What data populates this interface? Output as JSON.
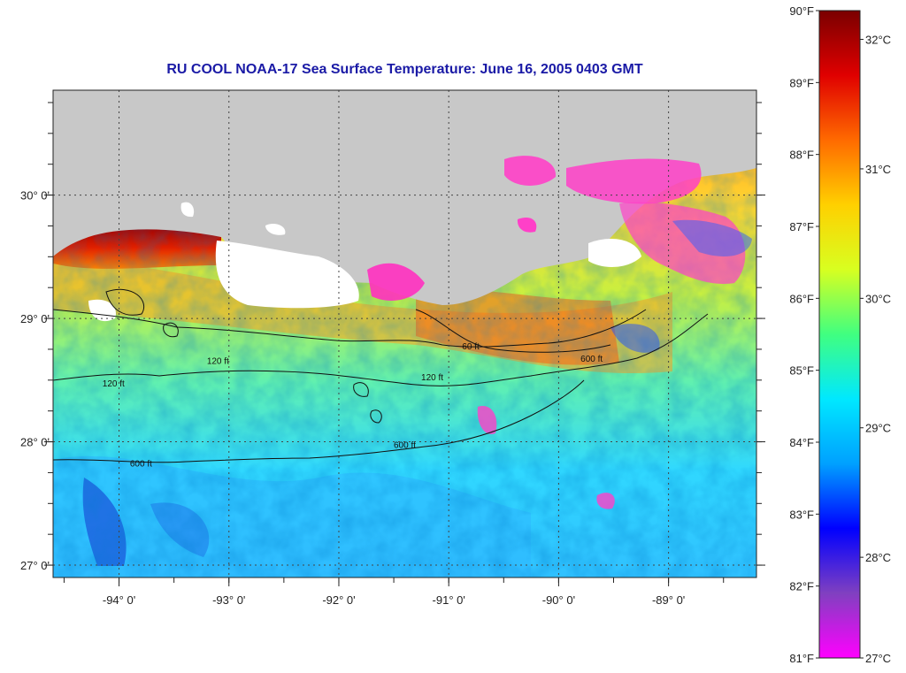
{
  "title": "RU COOL  NOAA-17  Sea Surface Temperature:  June 16, 2005 0403 GMT",
  "map": {
    "lon_range": [
      -94.6,
      -88.2
    ],
    "lat_range": [
      26.9,
      30.85
    ],
    "lon_ticks": [
      {
        "value": -94,
        "label": "-94° 0'"
      },
      {
        "value": -93,
        "label": "-93° 0'"
      },
      {
        "value": -92,
        "label": "-92° 0'"
      },
      {
        "value": -91,
        "label": "-91° 0'"
      },
      {
        "value": -90,
        "label": "-90° 0'"
      },
      {
        "value": -89,
        "label": "-89° 0'"
      }
    ],
    "lat_ticks": [
      {
        "value": 30,
        "label": "30° 0'"
      },
      {
        "value": 29,
        "label": "29° 0'"
      },
      {
        "value": 28,
        "label": "28° 0'"
      },
      {
        "value": 27,
        "label": "27° 0'"
      }
    ],
    "grid": true,
    "land_color": "#c8c8c8",
    "cloud_color": "#ffffff",
    "contour_labels": [
      {
        "text": "120 ft",
        "lon": -93.1,
        "lat": 28.63
      },
      {
        "text": "120 ft",
        "lon": -94.05,
        "lat": 28.45
      },
      {
        "text": "120 ft",
        "lon": -91.15,
        "lat": 28.5
      },
      {
        "text": "600 ft",
        "lon": -91.4,
        "lat": 27.95
      },
      {
        "text": "600 ft",
        "lon": -93.8,
        "lat": 27.8
      },
      {
        "text": "600 ft",
        "lon": -89.7,
        "lat": 28.65
      },
      {
        "text": "60 ft",
        "lon": -90.8,
        "lat": 28.75
      }
    ]
  },
  "colorbar": {
    "fahrenheit": [
      {
        "value": 90,
        "label": "90°F"
      },
      {
        "value": 89,
        "label": "89°F"
      },
      {
        "value": 88,
        "label": "88°F"
      },
      {
        "value": 87,
        "label": "87°F"
      },
      {
        "value": 86,
        "label": "86°F"
      },
      {
        "value": 85,
        "label": "85°F"
      },
      {
        "value": 84,
        "label": "84°F"
      },
      {
        "value": 83,
        "label": "83°F"
      },
      {
        "value": 82,
        "label": "82°F"
      },
      {
        "value": 81,
        "label": "81°F"
      }
    ],
    "celsius": [
      {
        "value": 32,
        "label": "32°C"
      },
      {
        "value": 31,
        "label": "31°C"
      },
      {
        "value": 30,
        "label": "30°C"
      },
      {
        "value": 29,
        "label": "29°C"
      },
      {
        "value": 28,
        "label": "28°C"
      },
      {
        "value": 27,
        "label": "27°C"
      }
    ],
    "colors": [
      "#7a0000",
      "#e00000",
      "#ff6a00",
      "#ffd000",
      "#d8ff20",
      "#40ff80",
      "#00e8ff",
      "#00a0ff",
      "#0000ff",
      "#8040c0",
      "#ff00ff"
    ]
  }
}
